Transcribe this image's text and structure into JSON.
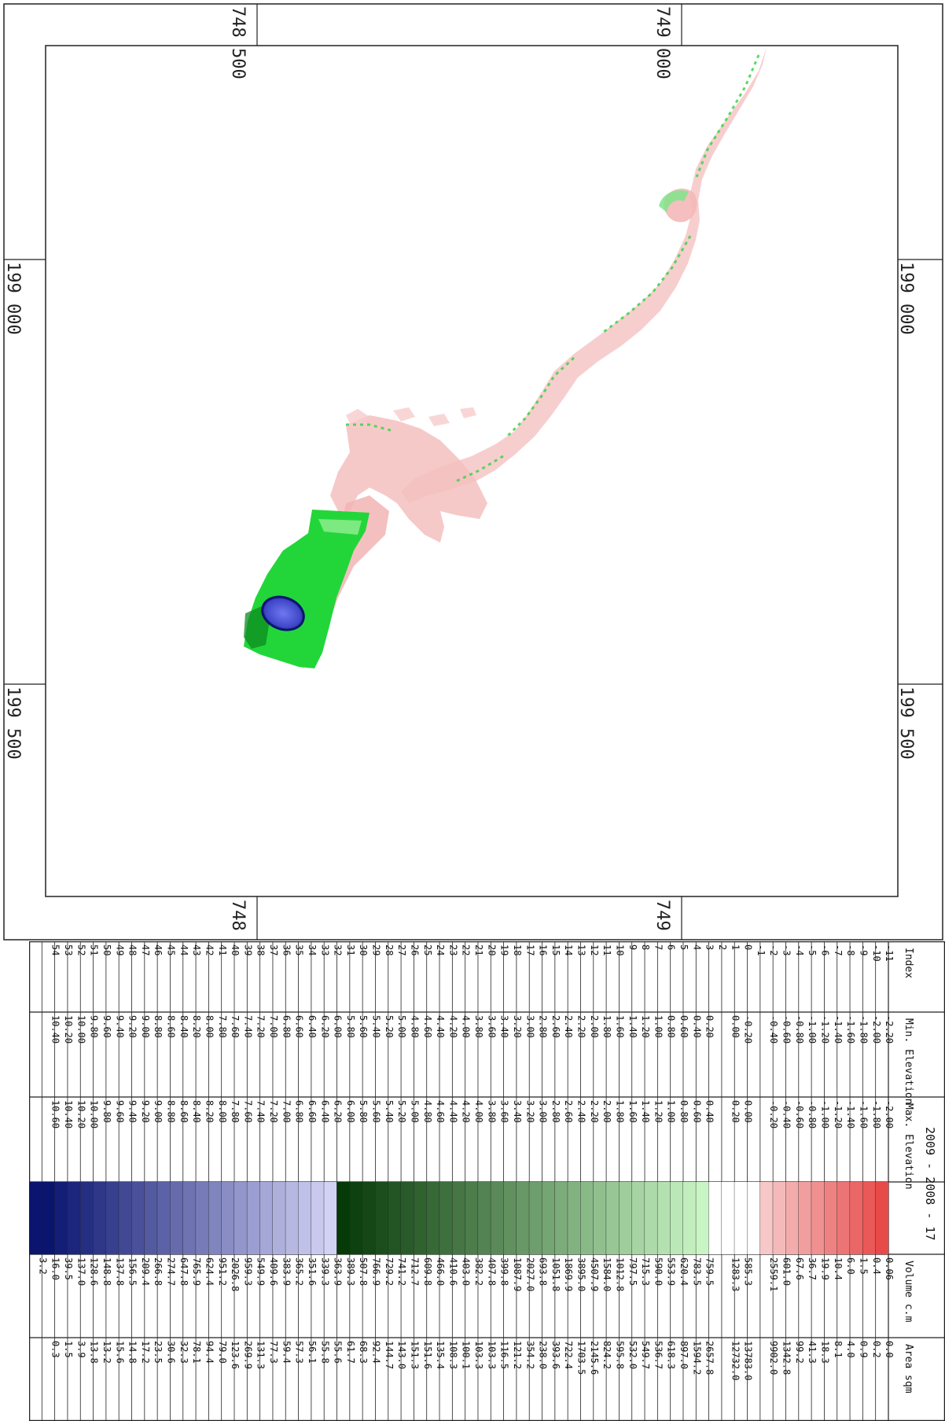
{
  "map": {
    "coord_top_left": "748 500",
    "coord_top_right": "749 000",
    "coord_bottom_left": "748 500",
    "coord_bottom_right": "749 000",
    "coord_left_upper": "199 000",
    "coord_left_lower": "199 500",
    "coord_right_upper": "199 000",
    "coord_right_lower": "199 500"
  },
  "legend": {
    "title": "2009 - 2008 - 17",
    "headers": {
      "index": "Index",
      "min": "Min. Elevation",
      "max": "Max. Elevation",
      "volume": "Volume c.m",
      "area": "Area sqm"
    },
    "colors": {
      "neg_strong": "#e84a4a",
      "neg_light": "#f6c8c8",
      "pos_light": "#c9f5c4",
      "pos_mid": "#22d63a",
      "pos_dark": "#063a08",
      "deep_light": "#d2d2f4",
      "deep_dark": "#0a1570"
    },
    "rows": [
      {
        "i": "-11",
        "min": "-2.20",
        "max": "-2.00",
        "vol": "0.06",
        "area": "0.0"
      },
      {
        "i": "-10",
        "min": "-2.00",
        "max": "-1.80",
        "vol": "0.4",
        "area": "0.2"
      },
      {
        "i": "-9",
        "min": "-1.80",
        "max": "-1.60",
        "vol": "1.5",
        "area": "0.9"
      },
      {
        "i": "-8",
        "min": "-1.60",
        "max": "-1.40",
        "vol": "6.0",
        "area": "4.0"
      },
      {
        "i": "-7",
        "min": "-1.40",
        "max": "-1.20",
        "vol": "10.4",
        "area": "8.1"
      },
      {
        "i": "-6",
        "min": "-1.20",
        "max": "-1.00",
        "vol": "19.9",
        "area": "18.3"
      },
      {
        "i": "-5",
        "min": "-1.00",
        "max": "-0.80",
        "vol": "36.7",
        "area": "41.3"
      },
      {
        "i": "-4",
        "min": "-0.80",
        "max": "-0.60",
        "vol": "67.6",
        "area": "99.2"
      },
      {
        "i": "-3",
        "min": "-0.60",
        "max": "-0.40",
        "vol": "601.0",
        "area": "1342.8"
      },
      {
        "i": "-2",
        "min": "-0.40",
        "max": "-0.20",
        "vol": "2559.1",
        "area": "9902.0"
      },
      {
        "i": "-1",
        "min": "",
        "max": "",
        "vol": "",
        "area": ""
      },
      {
        "i": "0",
        "min": "-0.20",
        "max": "0.00",
        "vol": "585.3",
        "area": "13783.0"
      },
      {
        "i": "1",
        "min": "0.00",
        "max": "0.20",
        "vol": "1283.3",
        "area": "12732.0"
      },
      {
        "i": "2",
        "min": "",
        "max": "",
        "vol": "",
        "area": ""
      },
      {
        "i": "3",
        "min": "0.20",
        "max": "0.40",
        "vol": "759.5",
        "area": "2657.8"
      },
      {
        "i": "4",
        "min": "0.40",
        "max": "0.60",
        "vol": "783.5",
        "area": "1594.2"
      },
      {
        "i": "5",
        "min": "0.60",
        "max": "0.80",
        "vol": "620.4",
        "area": "897.0"
      },
      {
        "i": "6",
        "min": "0.80",
        "max": "1.00",
        "vol": "553.9",
        "area": "618.3"
      },
      {
        "i": "7",
        "min": "1.00",
        "max": "1.20",
        "vol": "590.0",
        "area": "536.7"
      },
      {
        "i": "8",
        "min": "1.20",
        "max": "1.40",
        "vol": "715.3",
        "area": "549.7"
      },
      {
        "i": "9",
        "min": "1.40",
        "max": "1.60",
        "vol": "797.5",
        "area": "532.0"
      },
      {
        "i": "10",
        "min": "1.60",
        "max": "1.80",
        "vol": "1012.8",
        "area": "595.8"
      },
      {
        "i": "11",
        "min": "1.80",
        "max": "2.00",
        "vol": "1584.0",
        "area": "824.2"
      },
      {
        "i": "12",
        "min": "2.00",
        "max": "2.20",
        "vol": "4507.9",
        "area": "2145.6"
      },
      {
        "i": "13",
        "min": "2.20",
        "max": "2.40",
        "vol": "3895.0",
        "area": "1703.5"
      },
      {
        "i": "14",
        "min": "2.40",
        "max": "2.60",
        "vol": "1869.9",
        "area": "722.4"
      },
      {
        "i": "15",
        "min": "2.60",
        "max": "2.80",
        "vol": "1051.8",
        "area": "393.6"
      },
      {
        "i": "16",
        "min": "2.80",
        "max": "3.00",
        "vol": "693.8",
        "area": "238.0"
      },
      {
        "i": "17",
        "min": "3.00",
        "max": "3.20",
        "vol": "2027.0",
        "area": "354.2"
      },
      {
        "i": "18",
        "min": "3.20",
        "max": "3.40",
        "vol": "1087.9",
        "area": "121.2"
      },
      {
        "i": "19",
        "min": "3.40",
        "max": "3.60",
        "vol": "399.8",
        "area": "116.5"
      },
      {
        "i": "20",
        "min": "3.60",
        "max": "3.80",
        "vol": "407.8",
        "area": "103.3"
      },
      {
        "i": "21",
        "min": "3.80",
        "max": "4.00",
        "vol": "382.2",
        "area": "103.3"
      },
      {
        "i": "22",
        "min": "4.00",
        "max": "4.20",
        "vol": "403.0",
        "area": "100.1"
      },
      {
        "i": "23",
        "min": "4.20",
        "max": "4.40",
        "vol": "410.6",
        "area": "108.3"
      },
      {
        "i": "24",
        "min": "4.40",
        "max": "4.60",
        "vol": "466.0",
        "area": "135.4"
      },
      {
        "i": "25",
        "min": "4.60",
        "max": "4.80",
        "vol": "609.8",
        "area": "151.6"
      },
      {
        "i": "26",
        "min": "4.80",
        "max": "5.00",
        "vol": "712.7",
        "area": "151.3"
      },
      {
        "i": "27",
        "min": "5.00",
        "max": "5.20",
        "vol": "741.2",
        "area": "143.0"
      },
      {
        "i": "28",
        "min": "5.20",
        "max": "5.40",
        "vol": "729.2",
        "area": "144.7"
      },
      {
        "i": "29",
        "min": "5.40",
        "max": "5.60",
        "vol": "766.9",
        "area": "92.4"
      },
      {
        "i": "30",
        "min": "5.60",
        "max": "5.80",
        "vol": "507.8",
        "area": "68.3"
      },
      {
        "i": "31",
        "min": "5.80",
        "max": "6.00",
        "vol": "389.3",
        "area": "61.7"
      },
      {
        "i": "32",
        "min": "6.00",
        "max": "6.20",
        "vol": "363.9",
        "area": "55.6"
      },
      {
        "i": "33",
        "min": "6.20",
        "max": "6.40",
        "vol": "339.3",
        "area": "55.8"
      },
      {
        "i": "34",
        "min": "6.40",
        "max": "6.60",
        "vol": "351.6",
        "area": "56.1"
      },
      {
        "i": "35",
        "min": "6.60",
        "max": "6.80",
        "vol": "365.2",
        "area": "57.3"
      },
      {
        "i": "36",
        "min": "6.80",
        "max": "7.00",
        "vol": "383.9",
        "area": "59.4"
      },
      {
        "i": "37",
        "min": "7.00",
        "max": "7.20",
        "vol": "409.6",
        "area": "77.3"
      },
      {
        "i": "38",
        "min": "7.20",
        "max": "7.40",
        "vol": "549.9",
        "area": "131.3"
      },
      {
        "i": "39",
        "min": "7.40",
        "max": "7.60",
        "vol": "959.3",
        "area": "269.9"
      },
      {
        "i": "40",
        "min": "7.60",
        "max": "7.80",
        "vol": "2026.8",
        "area": "123.6"
      },
      {
        "i": "41",
        "min": "7.80",
        "max": "8.00",
        "vol": "951.2",
        "area": "79.0"
      },
      {
        "i": "42",
        "min": "8.00",
        "max": "8.20",
        "vol": "624.4",
        "area": "94.4"
      },
      {
        "i": "43",
        "min": "8.20",
        "max": "8.40",
        "vol": "765.9",
        "area": "78.1"
      },
      {
        "i": "44",
        "min": "8.40",
        "max": "8.60",
        "vol": "647.8",
        "area": "32.3"
      },
      {
        "i": "45",
        "min": "8.60",
        "max": "8.80",
        "vol": "274.7",
        "area": "30.6"
      },
      {
        "i": "46",
        "min": "8.80",
        "max": "9.00",
        "vol": "266.8",
        "area": "23.5"
      },
      {
        "i": "47",
        "min": "9.00",
        "max": "9.20",
        "vol": "209.4",
        "area": "17.2"
      },
      {
        "i": "48",
        "min": "9.20",
        "max": "9.40",
        "vol": "156.5",
        "area": "14.8"
      },
      {
        "i": "49",
        "min": "9.40",
        "max": "9.60",
        "vol": "137.8",
        "area": "15.6"
      },
      {
        "i": "50",
        "min": "9.60",
        "max": "9.80",
        "vol": "148.8",
        "area": "13.2"
      },
      {
        "i": "51",
        "min": "9.80",
        "max": "10.00",
        "vol": "128.6",
        "area": "13.8"
      },
      {
        "i": "52",
        "min": "10.00",
        "max": "10.20",
        "vol": "137.0",
        "area": "3.9"
      },
      {
        "i": "53",
        "min": "10.20",
        "max": "10.40",
        "vol": "39.5",
        "area": "1.5"
      },
      {
        "i": "54",
        "min": "10.40",
        "max": "10.60",
        "vol": "16.0",
        "area": "0.3"
      },
      {
        "i": "",
        "min": "",
        "max": "",
        "vol": "3.2",
        "area": ""
      }
    ]
  }
}
